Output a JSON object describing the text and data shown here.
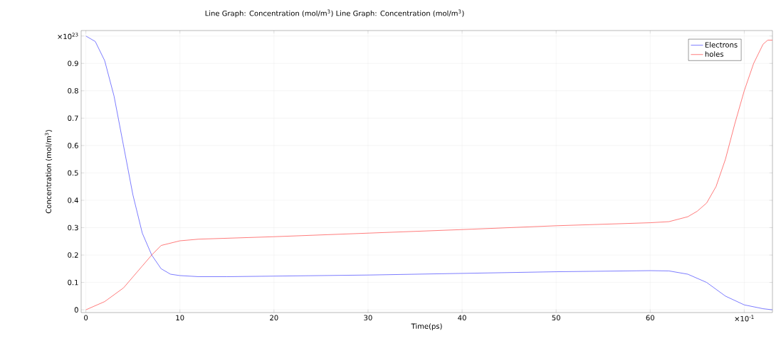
{
  "chart_data": {
    "type": "line",
    "title": "Line Graph: Concentration (mol/m$^{3}$)  Line Graph: Concentration (mol/m$^{3}$)",
    "xlabel": "Time(ps)",
    "ylabel": "Concentration (mol/m$^{3}$)",
    "xlim": [
      -0.5,
      73
    ],
    "ylim": [
      -0.01,
      1.02
    ],
    "xticks": [
      0,
      10,
      20,
      30,
      40,
      50,
      60,
      {
        "value": 70,
        "label": "×10$^{-1}$"
      }
    ],
    "yticks": [
      0,
      0.1,
      0.2,
      0.3,
      0.4,
      0.5,
      0.6,
      0.7,
      0.8,
      0.9,
      {
        "value": 1,
        "label": "×10$^{23}$"
      }
    ],
    "grid": true,
    "legend": "top right",
    "series": [
      {
        "name": "Electrons",
        "color": "#5a5aff",
        "x": [
          0,
          1,
          2,
          3,
          4,
          5,
          6,
          7,
          8,
          9,
          10,
          12,
          15,
          20,
          30,
          40,
          50,
          60,
          62,
          64,
          66,
          68,
          70,
          72,
          73
        ],
        "values": [
          1.0,
          0.98,
          0.91,
          0.78,
          0.6,
          0.42,
          0.28,
          0.2,
          0.15,
          0.13,
          0.125,
          0.121,
          0.121,
          0.123,
          0.127,
          0.133,
          0.139,
          0.143,
          0.142,
          0.13,
          0.1,
          0.05,
          0.018,
          0.004,
          0.0
        ]
      },
      {
        "name": "holes",
        "color": "#ff5a5a",
        "x": [
          0,
          2,
          4,
          6,
          7,
          8,
          10,
          12,
          20,
          30,
          40,
          50,
          60,
          62,
          64,
          65,
          66,
          67,
          68,
          69,
          70,
          71,
          72,
          72.5,
          73
        ],
        "values": [
          0,
          0.03,
          0.08,
          0.16,
          0.2,
          0.235,
          0.252,
          0.258,
          0.267,
          0.28,
          0.293,
          0.307,
          0.318,
          0.322,
          0.34,
          0.36,
          0.39,
          0.45,
          0.55,
          0.68,
          0.8,
          0.9,
          0.97,
          0.985,
          0.985
        ]
      }
    ]
  }
}
